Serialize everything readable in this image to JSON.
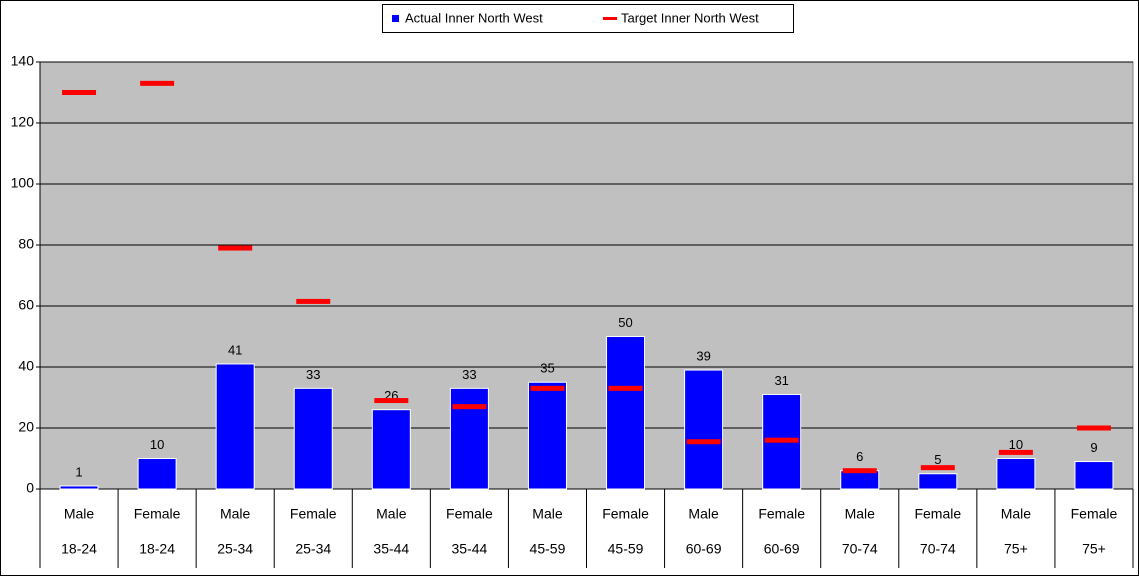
{
  "chart_data": {
    "type": "bar",
    "categories": [
      [
        "Male",
        "18-24"
      ],
      [
        "Female",
        "18-24"
      ],
      [
        "Male",
        "25-34"
      ],
      [
        "Female",
        "25-34"
      ],
      [
        "Male",
        "35-44"
      ],
      [
        "Female",
        "35-44"
      ],
      [
        "Male",
        "45-59"
      ],
      [
        "Female",
        "45-59"
      ],
      [
        "Male",
        "60-69"
      ],
      [
        "Female",
        "60-69"
      ],
      [
        "Male",
        "70-74"
      ],
      [
        "Female",
        "70-74"
      ],
      [
        "Male",
        "75+"
      ],
      [
        "Female",
        "75+"
      ]
    ],
    "series": [
      {
        "name": "Actual Inner North West",
        "color": "#0000ff",
        "type": "bar",
        "values": [
          1,
          10,
          41,
          33,
          26,
          33,
          35,
          50,
          39,
          31,
          6,
          5,
          10,
          9
        ]
      },
      {
        "name": "Target Inner North West",
        "color": "#ff0000",
        "type": "marker",
        "values": [
          130,
          133,
          79,
          61.5,
          29,
          27,
          33,
          33,
          15.5,
          16,
          6,
          7,
          12,
          20
        ]
      }
    ],
    "ylim": [
      0,
      140
    ],
    "yticks": [
      0,
      20,
      40,
      60,
      80,
      100,
      120,
      140
    ],
    "grid": true,
    "legend": "top"
  }
}
